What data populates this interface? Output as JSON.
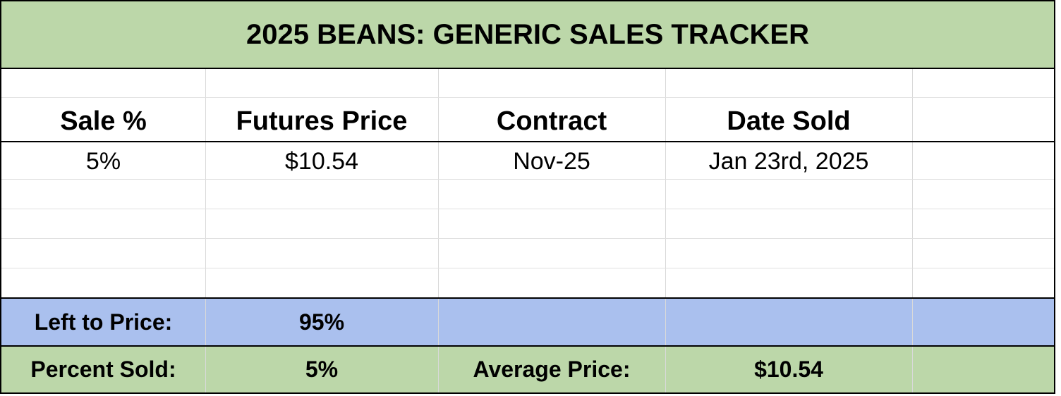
{
  "title": "2025 BEANS: GENERIC SALES TRACKER",
  "table": {
    "headers": [
      "Sale %",
      "Futures Price",
      "Contract",
      "Date Sold"
    ],
    "rows": [
      [
        "5%",
        "$10.54",
        "Nov-25",
        "Jan 23rd, 2025"
      ]
    ]
  },
  "summary": {
    "left_to_price": {
      "label": "Left to Price:",
      "value": "95%"
    },
    "percent_sold": {
      "label": "Percent Sold:",
      "value": "5%"
    },
    "average_price": {
      "label": "Average Price:",
      "value": "$10.54"
    }
  }
}
